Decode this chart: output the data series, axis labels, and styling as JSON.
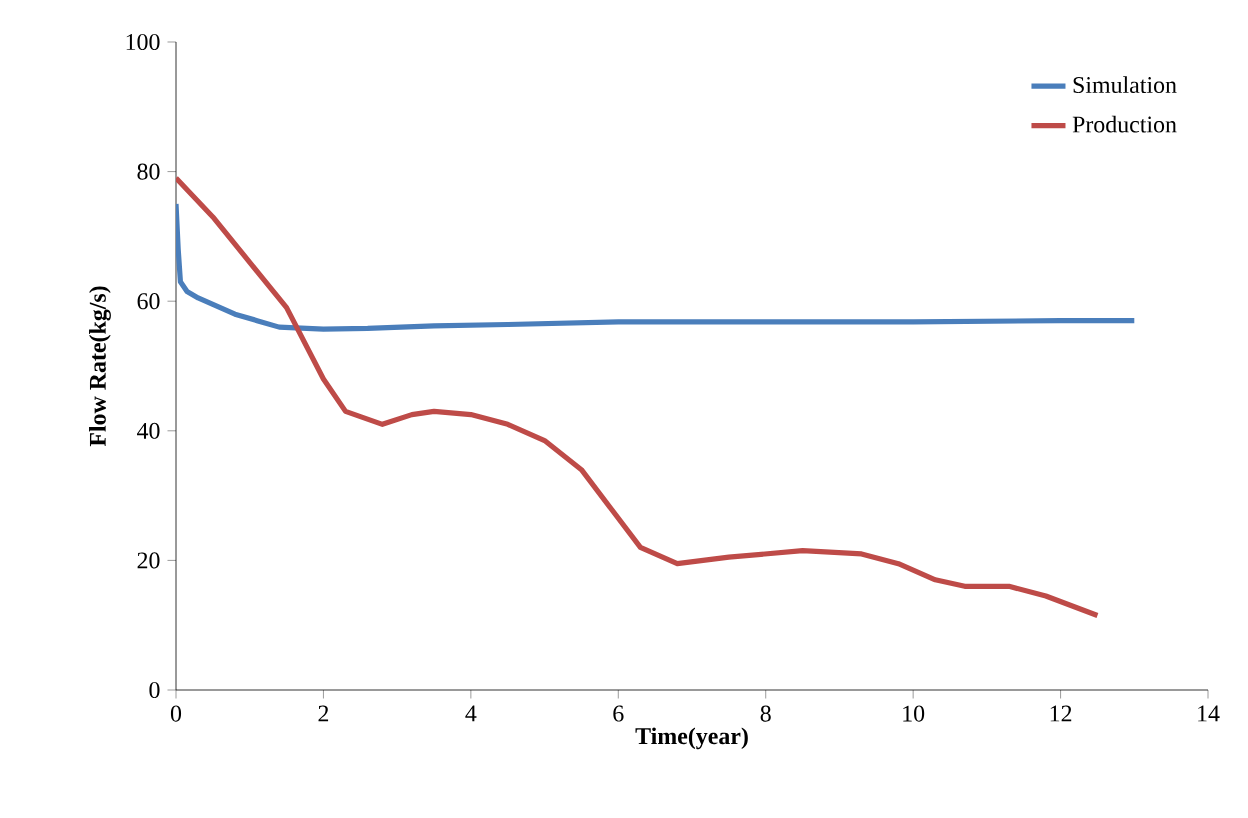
{
  "chart_data": {
    "type": "line",
    "xlabel": "Time(year)",
    "ylabel": "Flow Rate(kg/s)",
    "xlim": [
      0,
      14
    ],
    "xticks": [
      0,
      2,
      4,
      6,
      8,
      10,
      12,
      14
    ],
    "ylim": [
      0,
      100
    ],
    "yticks": [
      0,
      20,
      40,
      60,
      80,
      100
    ],
    "legend": "top right",
    "grid": false,
    "marker": "none",
    "line_style": "solid",
    "series": [
      {
        "name": "Simulation",
        "color": "#4a7ebb",
        "x": [
          0,
          0.03,
          0.06,
          0.15,
          0.3,
          0.5,
          0.8,
          1.1,
          1.4,
          2,
          2.6,
          3.5,
          4.5,
          6,
          8,
          10,
          12,
          13
        ],
        "values": [
          75,
          68,
          63,
          61.5,
          60.5,
          59.5,
          58,
          57,
          56,
          55.7,
          55.8,
          56.2,
          56.4,
          56.8,
          56.8,
          56.8,
          57,
          57
        ]
      },
      {
        "name": "Production",
        "color": "#be4b48",
        "x": [
          0,
          0.5,
          1,
          1.5,
          2,
          2.3,
          2.8,
          3.2,
          3.5,
          4,
          4.5,
          5,
          5.5,
          5.9,
          6.3,
          6.8,
          7.5,
          8.5,
          9.3,
          9.8,
          10.3,
          10.7,
          11.3,
          11.8,
          12.5
        ],
        "values": [
          79,
          73,
          66,
          59,
          48,
          43,
          41,
          42.5,
          43,
          42.5,
          41,
          38.5,
          34,
          28,
          22,
          19.5,
          20.5,
          21.5,
          21,
          19.5,
          17,
          16,
          16,
          14.5,
          11.5
        ]
      }
    ]
  }
}
